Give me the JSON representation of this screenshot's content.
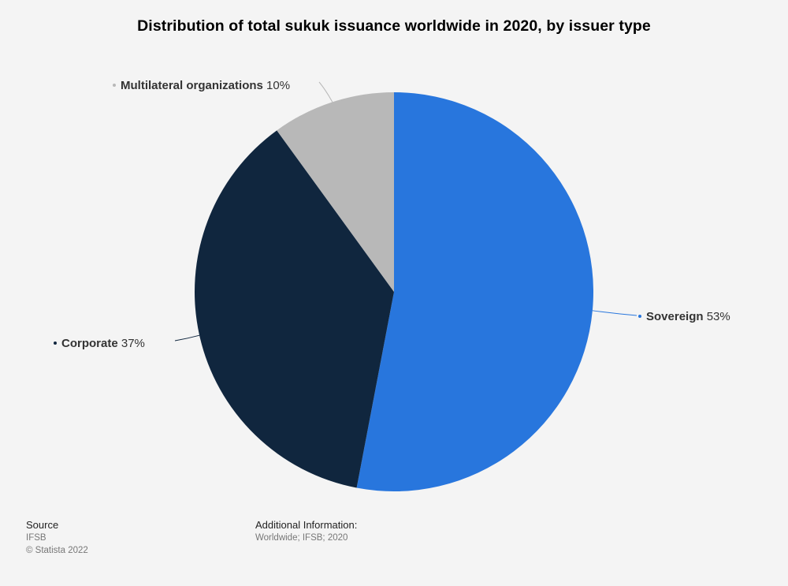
{
  "chart_data": {
    "type": "pie",
    "title": "Distribution of total sukuk issuance worldwide in 2020, by issuer type",
    "slices": [
      {
        "label": "Sovereign",
        "value": 53,
        "value_label": "53%",
        "color": "#2876dd"
      },
      {
        "label": "Corporate",
        "value": 37,
        "value_label": "37%",
        "color": "#10263e"
      },
      {
        "label": "Multilateral organizations",
        "value": 10,
        "value_label": "10%",
        "color": "#b8b8b8"
      }
    ],
    "unit": "%"
  },
  "footer": {
    "source_heading": "Source",
    "source_name": "IFSB",
    "copyright": "© Statista 2022",
    "info_heading": "Additional Information:",
    "info_text": "Worldwide; IFSB; 2020"
  }
}
